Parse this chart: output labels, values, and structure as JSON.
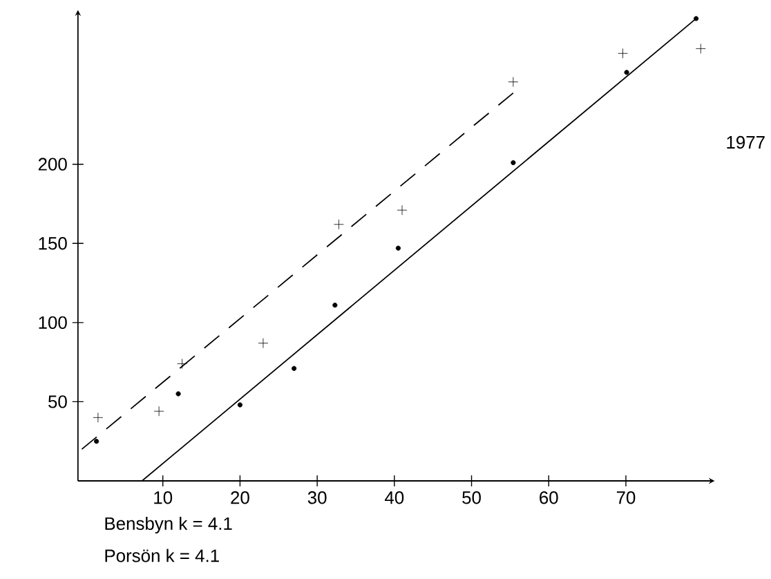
{
  "chart_data": {
    "type": "scatter",
    "annotations": [
      "1977",
      "Bensbyn k = 4.1",
      "Porsön k = 4.1"
    ],
    "xlim": [
      -1,
      81
    ],
    "ylim": [
      0,
      295
    ],
    "xticks": [
      10,
      20,
      30,
      40,
      50,
      60,
      70
    ],
    "yticks": [
      50,
      100,
      150,
      200
    ],
    "series": [
      {
        "color": "#000000",
        "marker": "circle",
        "x": [
          1.4,
          12,
          20,
          27,
          32.3,
          40.5,
          55.4,
          70.1,
          79.1
        ],
        "values": [
          25,
          55,
          48,
          71,
          111,
          147,
          201,
          258,
          292
        ]
      },
      {
        "color": "#000000",
        "marker": "cross",
        "x": [
          1.6,
          9.5,
          12.5,
          23,
          32.8,
          41,
          55.4,
          69.6,
          79.7
        ],
        "values": [
          40,
          44,
          74,
          87,
          162,
          171,
          252,
          270,
          273
        ]
      },
      {
        "type": "line",
        "line_style": "solid",
        "marker": "none",
        "color": "#000000",
        "x": [
          7.3,
          79.1
        ],
        "values": [
          0,
          292
        ]
      },
      {
        "type": "line",
        "line_style": "dashed",
        "marker": "none",
        "color": "#000000",
        "x": [
          -0.5,
          55.4
        ],
        "values": [
          20,
          245
        ]
      }
    ]
  }
}
